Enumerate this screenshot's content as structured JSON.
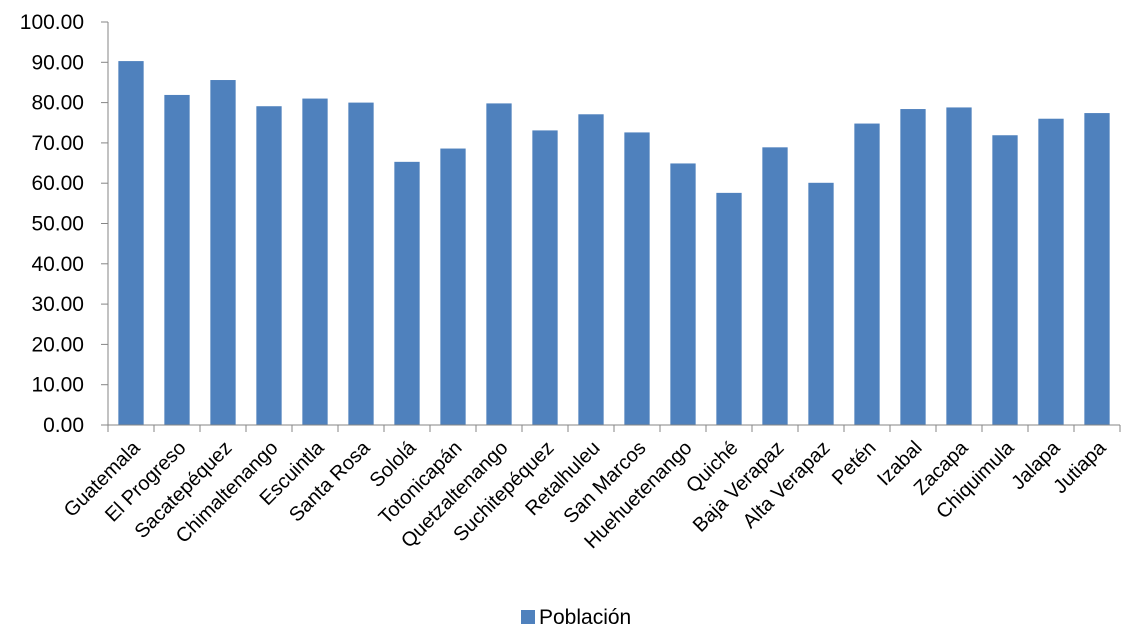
{
  "chart_data": {
    "type": "bar",
    "categories": [
      "Guatemala",
      "El Progreso",
      "Sacatepéquez",
      "Chimaltenango",
      "Escuintla",
      "Santa Rosa",
      "Sololá",
      "Totonicapán",
      "Quetzaltenango",
      "Suchitepéquez",
      "Retalhuleu",
      "San Marcos",
      "Huehuetenango",
      "Quiché",
      "Baja Verapaz",
      "Alta Verapaz",
      "Petén",
      "Izabal",
      "Zacapa",
      "Chiquimula",
      "Jalapa",
      "Jutiapa"
    ],
    "series": [
      {
        "name": "Población",
        "color": "#4f81bd",
        "values": [
          90.3,
          81.9,
          85.6,
          79.1,
          81.0,
          80.0,
          65.3,
          68.6,
          79.8,
          73.1,
          77.1,
          72.6,
          64.9,
          57.6,
          68.9,
          60.1,
          74.8,
          78.4,
          78.8,
          71.9,
          76.0,
          77.4
        ]
      }
    ],
    "ylim": [
      0,
      100
    ],
    "yticks": [
      "0.00",
      "10.00",
      "20.00",
      "30.00",
      "40.00",
      "50.00",
      "60.00",
      "70.00",
      "80.00",
      "90.00",
      "100.00"
    ],
    "grid": false,
    "legend_position": "bottom",
    "title": "",
    "xlabel": "",
    "ylabel": ""
  }
}
